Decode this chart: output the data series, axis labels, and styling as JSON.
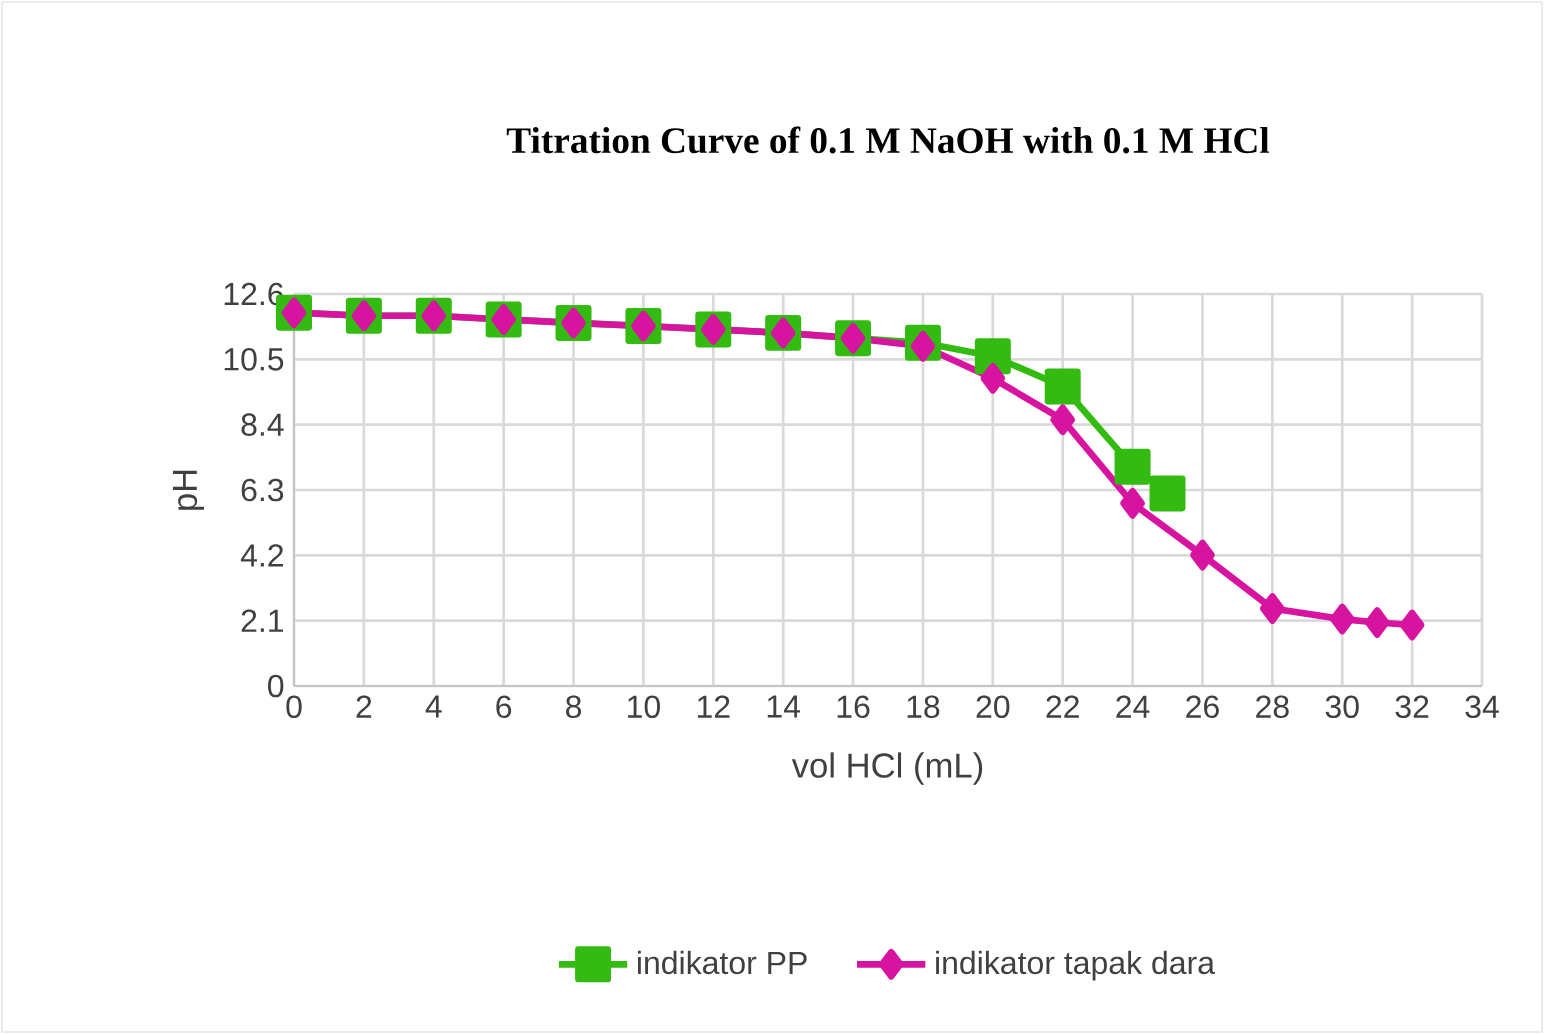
{
  "chart_data": {
    "type": "line",
    "title": "Titration Curve of 0.1 M NaOH with 0.1 M HCl",
    "xlabel": "vol HCl (mL)",
    "ylabel": "pH",
    "xlim": [
      0,
      34
    ],
    "xticks": [
      0,
      2,
      4,
      6,
      8,
      10,
      12,
      14,
      16,
      18,
      20,
      22,
      24,
      26,
      28,
      30,
      32,
      34
    ],
    "ylim": [
      0,
      12.6
    ],
    "yticks": [
      0,
      2.1,
      4.2,
      6.3,
      8.4,
      10.5,
      12.6
    ],
    "grid": true,
    "legend": "bottom",
    "line_style": "solid",
    "series": [
      {
        "name": "indikator PP",
        "color": "#33bb11",
        "marker": "square",
        "x": [
          0,
          2,
          4,
          6,
          8,
          10,
          12,
          14,
          16,
          18,
          20,
          22,
          24,
          25
        ],
        "values": [
          12.0,
          11.9,
          11.9,
          11.78,
          11.67,
          11.57,
          11.46,
          11.35,
          11.18,
          11.03,
          10.6,
          9.63,
          7.05,
          6.19
        ]
      },
      {
        "name": "indikator tapak dara",
        "color": "#d614a0",
        "marker": "diamond",
        "x": [
          0,
          2,
          4,
          6,
          8,
          10,
          12,
          14,
          16,
          18,
          20,
          22,
          24,
          26,
          28,
          30,
          31,
          32
        ],
        "values": [
          12.0,
          11.9,
          11.9,
          11.78,
          11.67,
          11.57,
          11.46,
          11.35,
          11.18,
          10.92,
          9.89,
          8.56,
          5.87,
          4.21,
          2.49,
          2.15,
          2.04,
          1.96
        ]
      }
    ]
  }
}
